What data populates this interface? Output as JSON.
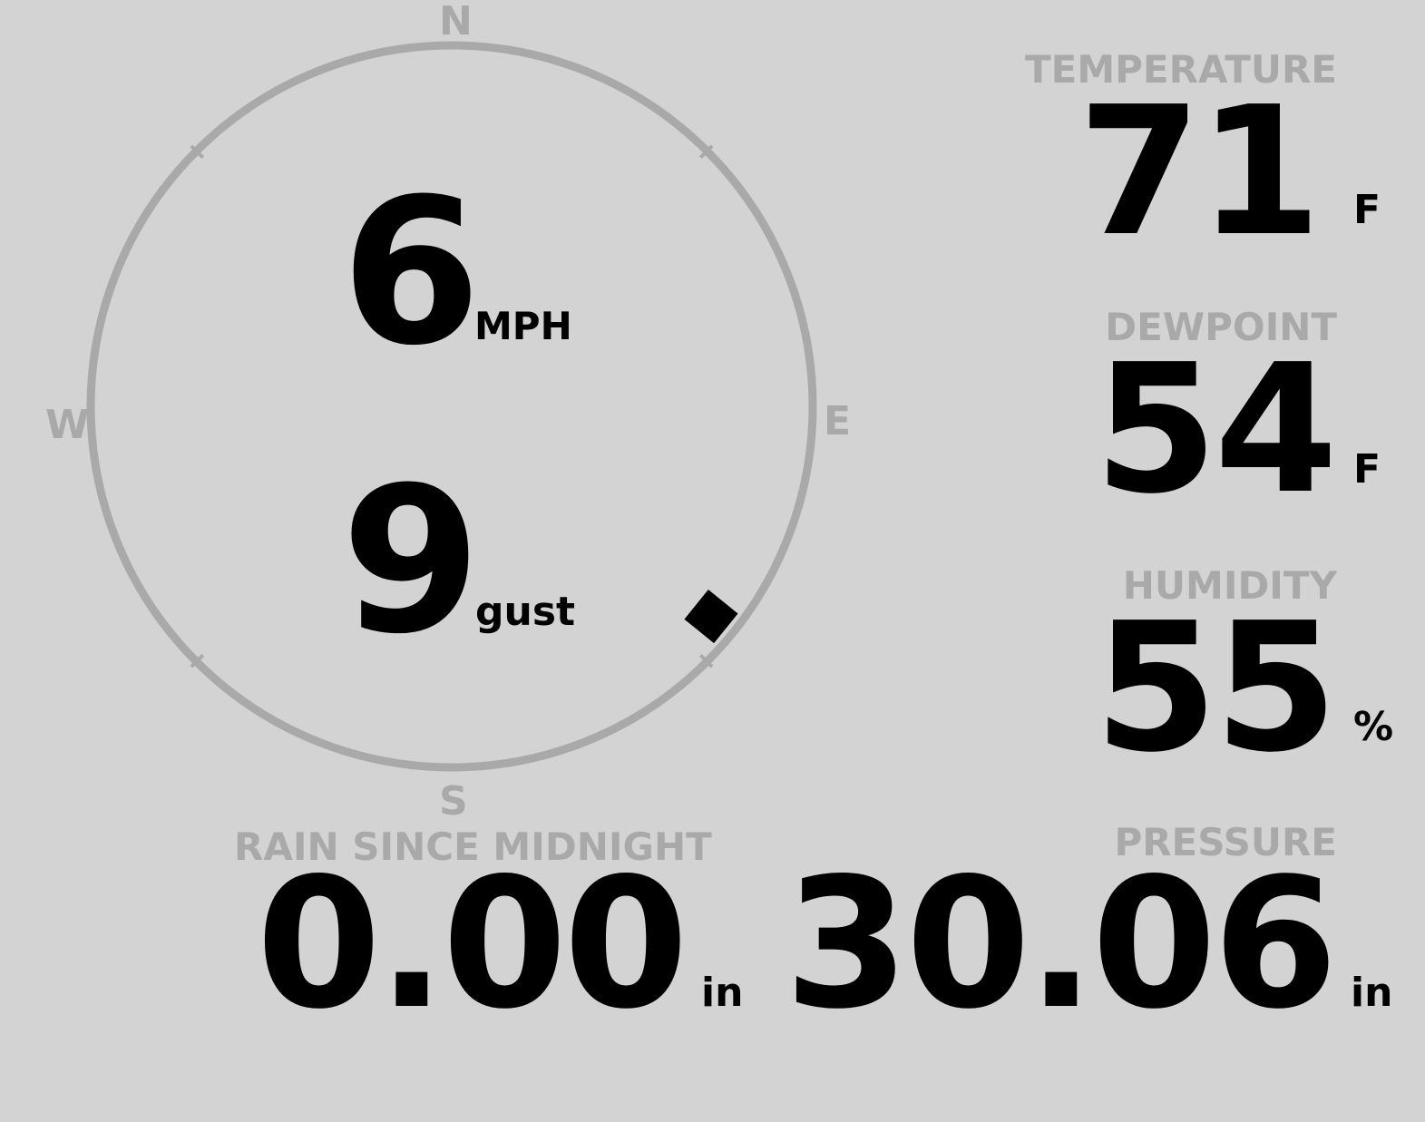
{
  "compass": {
    "north": "N",
    "east": "E",
    "south": "S",
    "west": "W",
    "wind_direction_deg": 129,
    "ring_color": "#a9a9a9"
  },
  "wind": {
    "speed": "6",
    "speed_unit": "MPH",
    "gust": "9",
    "gust_label": "gust"
  },
  "temperature": {
    "label": "TEMPERATURE",
    "value": "71",
    "unit": "F"
  },
  "dewpoint": {
    "label": "DEWPOINT",
    "value": "54",
    "unit": "F"
  },
  "humidity": {
    "label": "HUMIDITY",
    "value": "55",
    "unit": "%"
  },
  "rain": {
    "label": "RAIN SINCE MIDNIGHT",
    "value": "0.00",
    "unit": "in"
  },
  "pressure": {
    "label": "PRESSURE",
    "value": "30.06",
    "unit": "in"
  },
  "colors": {
    "background": "#d3d3d3",
    "label": "#a9a9a9",
    "value": "#000000"
  }
}
